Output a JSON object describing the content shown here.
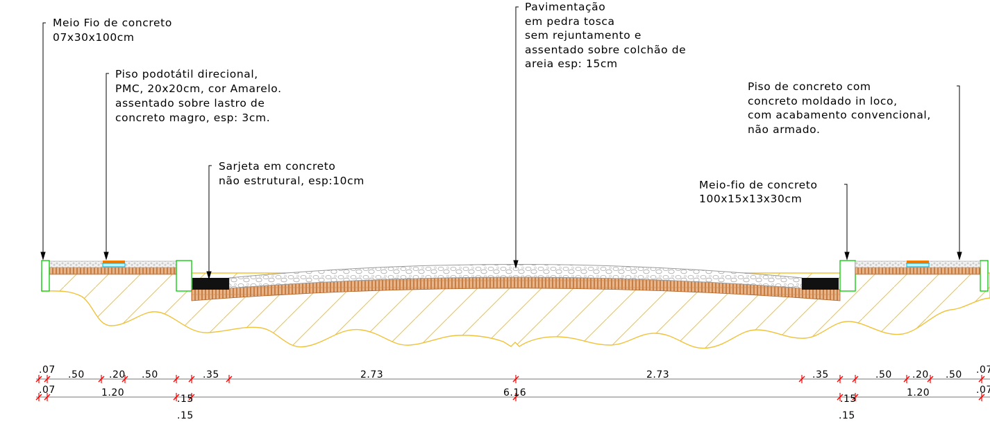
{
  "labels": {
    "meio_fio_left": [
      "Meio Fio de concreto",
      "07x30x100cm"
    ],
    "piso_podotatil": [
      "Piso podotátil direcional,",
      "PMC, 20x20cm, cor Amarelo.",
      "assentado sobre lastro de",
      "concreto magro, esp: 3cm."
    ],
    "sarjeta": [
      "Sarjeta em concreto",
      "não estrutural, esp:10cm"
    ],
    "pavimentacao": [
      "Pavimentação",
      "em pedra tosca",
      "sem rejuntamento e",
      "assentado sobre colchão de",
      "areia esp: 15cm"
    ],
    "piso_concreto": [
      "Piso de concreto com",
      "concreto moldado in loco,",
      "com acabamento convencional,",
      "não armado."
    ],
    "meio_fio_right": [
      "Meio-fio de concreto",
      "100x15x13x30cm"
    ]
  },
  "dimensions": {
    "row1": [
      ".07",
      ".50",
      ".20",
      ".50",
      ".35",
      "2.73",
      "2.73",
      ".35",
      ".50",
      ".20",
      ".50",
      ".07"
    ],
    "row2": [
      ".07",
      "1.20",
      ".15",
      "6.16",
      ".15",
      "1.20",
      ".07"
    ],
    "row3": [
      ".15",
      ".15"
    ]
  },
  "colors": {
    "soil_hatch": "#f0c23a",
    "sand_layer": "#c4742a",
    "stone_outline": "#9a9a9a",
    "curb_outline": "#00cc00",
    "tactile_tile": "#f07a00",
    "tactile_base": "#00b4d8",
    "dimension_tick": "#ff0000",
    "sarjeta_fill": "#111111"
  }
}
